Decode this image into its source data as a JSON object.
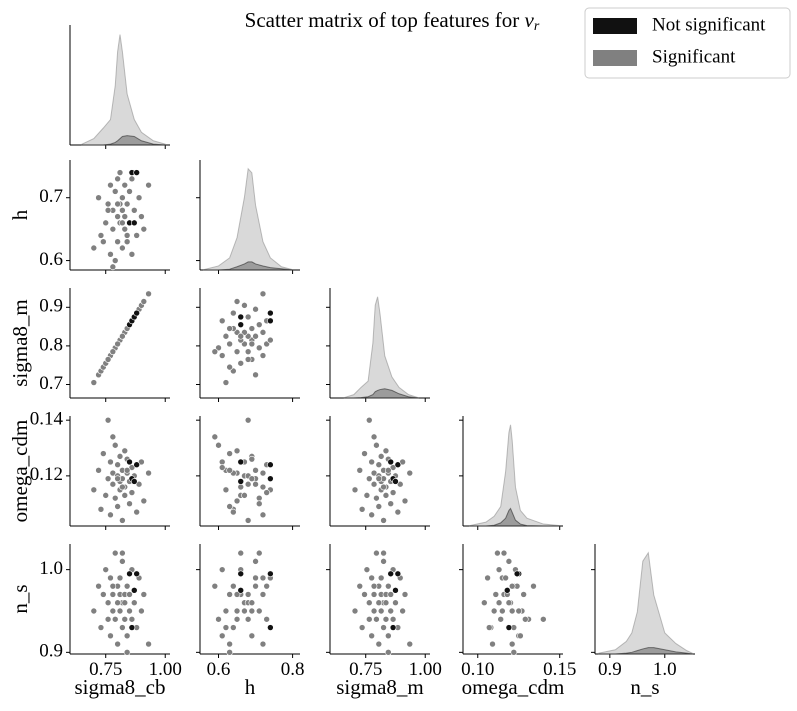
{
  "chart_data": {
    "type": "pairplot",
    "title": "Scatter matrix of top features for ",
    "title_symbol": "v",
    "title_subscript": "r",
    "variables": [
      {
        "name": "sigma8_cb",
        "xlim": [
          0.6,
          1.02
        ],
        "xticks": [
          0.75,
          {
            "value": 1.0,
            "label": "1.00"
          }
        ],
        "kde_x": [
          0.65,
          0.7,
          0.74,
          0.77,
          0.79,
          0.8,
          0.81,
          0.82,
          0.84,
          0.87,
          0.9,
          0.95,
          1.0
        ]
      },
      {
        "name": "h",
        "xlim": [
          0.55,
          0.82
        ],
        "xticks": [
          0.6,
          0.8
        ],
        "ylim": [
          0.585,
          0.76
        ],
        "yticks": [
          0.6,
          0.7
        ],
        "kde_x": [
          0.56,
          0.6,
          0.63,
          0.65,
          0.67,
          0.68,
          0.69,
          0.7,
          0.72,
          0.74,
          0.77,
          0.8
        ]
      },
      {
        "name": "sigma8_m",
        "xlim": [
          0.6,
          1.02
        ],
        "xticks": [
          0.75,
          {
            "value": 1.0,
            "label": "1.00"
          }
        ],
        "ylim": [
          0.665,
          0.95
        ],
        "yticks": [
          0.7,
          0.8,
          0.9
        ],
        "kde_x": [
          0.66,
          0.7,
          0.73,
          0.76,
          0.78,
          0.79,
          0.8,
          0.81,
          0.83,
          0.86,
          0.89,
          0.93,
          0.97
        ]
      },
      {
        "name": "omega_cdm",
        "xlim": [
          0.091,
          0.152
        ],
        "xticks": [
          {
            "value": 0.1,
            "label": "0.10"
          },
          0.15
        ],
        "ylim": [
          0.102,
          0.1415
        ],
        "yticks": [
          0.12,
          0.14
        ],
        "kde_x": [
          0.095,
          0.105,
          0.11,
          0.114,
          0.117,
          0.119,
          0.12,
          0.121,
          0.123,
          0.126,
          0.13,
          0.14,
          0.15
        ]
      },
      {
        "name": "n_s",
        "xlim": [
          0.873,
          1.055
        ],
        "xticks": [
          0.9,
          {
            "value": 1.0,
            "label": "1.0"
          }
        ],
        "ylim": [
          0.898,
          1.031
        ],
        "yticks": [
          0.9,
          {
            "value": 1.0,
            "label": "1.0"
          }
        ],
        "kde_x": [
          0.88,
          0.91,
          0.93,
          0.94,
          0.95,
          0.96,
          0.97,
          0.98,
          1.0,
          1.02,
          1.04,
          1.05
        ]
      }
    ],
    "series": [
      {
        "name": "Not significant",
        "color": "#111111",
        "values": [
          [
            0.85,
            0.86,
            0.87,
            0.88
          ],
          [
            0.66,
            0.74,
            0.66,
            0.74
          ],
          [
            0.855,
            0.865,
            0.875,
            0.885
          ],
          [
            0.125,
            0.119,
            0.118,
            0.124
          ],
          [
            0.995,
            0.93,
            0.975,
            0.995
          ]
        ],
        "kde": [
          [
            0,
            0,
            0,
            0.2,
            0.6,
            1,
            1.5,
            2,
            2.2,
            2,
            1,
            0.2,
            0
          ],
          [
            0,
            0,
            0.2,
            0.8,
            1.5,
            2,
            2,
            1.5,
            1,
            0.6,
            0.3,
            0
          ],
          [
            0,
            0,
            0.1,
            0.3,
            0.8,
            1.5,
            1.8,
            2,
            2.2,
            1.8,
            1,
            0.3,
            0
          ],
          [
            0,
            0,
            0.2,
            0.8,
            2,
            4,
            4.5,
            3.5,
            1.5,
            0.5,
            0.1,
            0,
            0
          ],
          [
            0,
            0,
            0.2,
            0.4,
            0.8,
            1.2,
            1.5,
            1.5,
            1,
            0.5,
            0.2,
            0
          ]
        ]
      },
      {
        "name": "Significant",
        "color": "#808080",
        "values": [
          [
            0.7,
            0.72,
            0.73,
            0.74,
            0.75,
            0.76,
            0.77,
            0.77,
            0.78,
            0.78,
            0.79,
            0.79,
            0.8,
            0.8,
            0.8,
            0.81,
            0.81,
            0.81,
            0.82,
            0.82,
            0.82,
            0.83,
            0.83,
            0.83,
            0.84,
            0.84,
            0.85,
            0.85,
            0.86,
            0.86,
            0.87,
            0.88,
            0.89,
            0.9,
            0.91,
            0.93,
            0.78,
            0.8,
            0.82,
            0.76,
            0.84
          ],
          [
            0.62,
            0.7,
            0.64,
            0.63,
            0.66,
            0.69,
            0.61,
            0.72,
            0.65,
            0.68,
            0.6,
            0.71,
            0.67,
            0.73,
            0.63,
            0.66,
            0.69,
            0.74,
            0.62,
            0.68,
            0.7,
            0.65,
            0.72,
            0.67,
            0.64,
            0.69,
            0.71,
            0.66,
            0.61,
            0.73,
            0.68,
            0.64,
            0.7,
            0.67,
            0.65,
            0.72,
            0.59,
            0.69,
            0.66,
            0.68,
            0.63
          ],
          [
            0.705,
            0.725,
            0.735,
            0.745,
            0.755,
            0.765,
            0.775,
            0.775,
            0.785,
            0.785,
            0.795,
            0.795,
            0.805,
            0.805,
            0.805,
            0.815,
            0.815,
            0.815,
            0.825,
            0.825,
            0.825,
            0.835,
            0.835,
            0.835,
            0.845,
            0.845,
            0.855,
            0.855,
            0.865,
            0.865,
            0.875,
            0.885,
            0.895,
            0.905,
            0.915,
            0.935,
            0.785,
            0.805,
            0.825,
            0.765,
            0.845
          ],
          [
            0.115,
            0.122,
            0.108,
            0.128,
            0.113,
            0.119,
            0.125,
            0.106,
            0.121,
            0.117,
            0.131,
            0.112,
            0.12,
            0.124,
            0.109,
            0.118,
            0.127,
            0.115,
            0.122,
            0.104,
            0.119,
            0.129,
            0.116,
            0.113,
            0.121,
            0.126,
            0.11,
            0.118,
            0.123,
            0.114,
            0.12,
            0.107,
            0.117,
            0.125,
            0.111,
            0.121,
            0.134,
            0.119,
            0.116,
            0.14,
            0.122
          ],
          [
            0.95,
            0.98,
            0.93,
            0.97,
            1.0,
            0.96,
            0.92,
            0.99,
            0.95,
            0.97,
            0.94,
            1.02,
            0.96,
            0.98,
            0.91,
            0.97,
            0.95,
            0.99,
            0.93,
            0.96,
            1.01,
            0.94,
            0.97,
            0.96,
            0.98,
            0.92,
            0.95,
            0.97,
            1.0,
            0.94,
            0.96,
            0.93,
            0.99,
            0.95,
            0.97,
            0.91,
            0.98,
            0.96,
            1.02,
            0.94,
            0.9
          ]
        ],
        "kde": [
          [
            0.2,
            1.5,
            4,
            6,
            14,
            22,
            26,
            22,
            12,
            6,
            3,
            1,
            0.2
          ],
          [
            0.1,
            1,
            3,
            8,
            18,
            25,
            24,
            16,
            7,
            3,
            0.8,
            0.1
          ],
          [
            0.1,
            0.8,
            2.5,
            4,
            13,
            22,
            24,
            20,
            10,
            5,
            2.5,
            0.8,
            0.1
          ],
          [
            0.1,
            1,
            2.5,
            5,
            14,
            24,
            26,
            22,
            10,
            4,
            2,
            0.5,
            0.1
          ],
          [
            0.2,
            1,
            3,
            5,
            10,
            22,
            24,
            14,
            5,
            2.5,
            0.8,
            0.2
          ]
        ]
      }
    ]
  }
}
